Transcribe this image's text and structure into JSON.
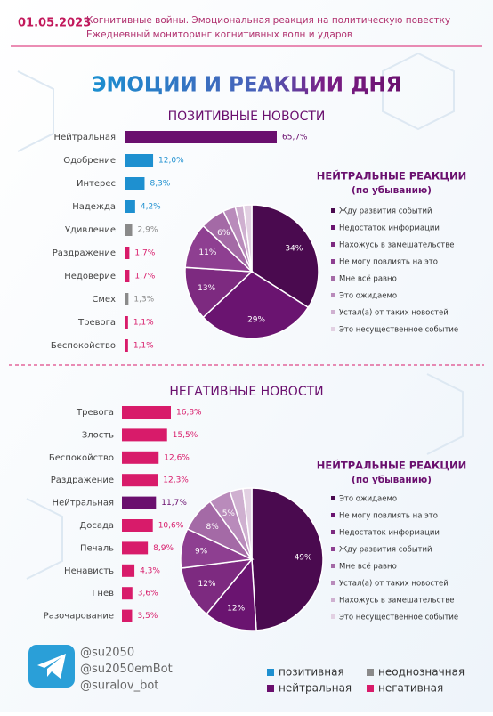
{
  "header": {
    "date": "01.05.2023",
    "line1": "Когнитивные войны. Эмоциональная реакция на политическую повестку",
    "line2": "Ежедневный мониторинг когнитивных волн и ударов"
  },
  "title": "ЭМОЦИИ И РЕАКЦИИ ДНЯ",
  "chart_data": [
    {
      "type": "bar",
      "orientation": "horizontal",
      "title": "ПОЗИТИВНЫЕ НОВОСТИ",
      "categories": [
        "Нейтральная",
        "Одобрение",
        "Интерес",
        "Надежда",
        "Удивление",
        "Раздражение",
        "Недоверие",
        "Смех",
        "Тревога",
        "Беспокойство"
      ],
      "values": [
        65.7,
        12.0,
        8.3,
        4.2,
        2.9,
        1.7,
        1.7,
        1.3,
        1.1,
        1.1
      ],
      "value_labels": [
        "65,7%",
        "12,0%",
        "8,3%",
        "4,2%",
        "2,9%",
        "1,7%",
        "1,7%",
        "1,3%",
        "1,1%",
        "1,1%"
      ],
      "colors": [
        "#6a0f6e",
        "#1e90d0",
        "#1e90d0",
        "#1e90d0",
        "#8a8a8a",
        "#d81b6a",
        "#d81b6a",
        "#8a8a8a",
        "#d81b6a",
        "#d81b6a"
      ]
    },
    {
      "type": "pie",
      "title": "НЕЙТРАЛЬНЫЕ РЕАКЦИИ",
      "subtitle": "(по убыванию)",
      "categories": [
        "Жду развития событий",
        "Недостаток информации",
        "Нахожусь в замешательстве",
        "Не могу повлиять на это",
        "Мне всё равно",
        "Это ожидаемо",
        "Устал(а) от таких новостей",
        "Это несущественное событие"
      ],
      "values": [
        34,
        29,
        13,
        11,
        6,
        3,
        2,
        2
      ],
      "value_labels": [
        "34%",
        "29%",
        "13%",
        "11%",
        "6%",
        null,
        null,
        null
      ],
      "colors": [
        "#4a0a4f",
        "#6a1470",
        "#7d2a80",
        "#8e3f91",
        "#a46aa6",
        "#b98bbb",
        "#cfb0d0",
        "#e2d0e2"
      ]
    },
    {
      "type": "bar",
      "orientation": "horizontal",
      "title": "НЕГАТИВНЫЕ НОВОСТИ",
      "categories": [
        "Тревога",
        "Злость",
        "Беспокойство",
        "Раздражение",
        "Нейтральная",
        "Досада",
        "Печаль",
        "Ненависть",
        "Гнев",
        "Разочарование"
      ],
      "values": [
        16.8,
        15.5,
        12.6,
        12.3,
        11.7,
        10.6,
        8.9,
        4.3,
        3.6,
        3.5
      ],
      "value_labels": [
        "16,8%",
        "15,5%",
        "12,6%",
        "12,3%",
        "11,7%",
        "10,6%",
        "8,9%",
        "4,3%",
        "3,6%",
        "3,5%"
      ],
      "colors": [
        "#d81b6a",
        "#d81b6a",
        "#d81b6a",
        "#d81b6a",
        "#6a0f6e",
        "#d81b6a",
        "#d81b6a",
        "#d81b6a",
        "#d81b6a",
        "#d81b6a"
      ]
    },
    {
      "type": "pie",
      "title": "НЕЙТРАЛЬНЫЕ РЕАКЦИИ",
      "subtitle": "(по убыванию)",
      "categories": [
        "Это ожидаемо",
        "Не могу повлиять на это",
        "Недостаток информации",
        "Жду развития событий",
        "Мне всё равно",
        "Устал(а) от таких новостей",
        "Нахожусь в замешательстве",
        "Это несущественное событие"
      ],
      "values": [
        49,
        12,
        12,
        9,
        8,
        5,
        3,
        2
      ],
      "value_labels": [
        "49%",
        "12%",
        "12%",
        "9%",
        "8%",
        "5%",
        null,
        null
      ],
      "colors": [
        "#4a0a4f",
        "#6a1470",
        "#7d2a80",
        "#8e3f91",
        "#a46aa6",
        "#b98bbb",
        "#cfb0d0",
        "#e2d0e2"
      ]
    }
  ],
  "contacts": [
    "@su2050",
    "@su2050emBot",
    "@suralov_bot"
  ],
  "color_legend": [
    {
      "label": "позитивная",
      "color": "#1e90d0"
    },
    {
      "label": "неоднозначная",
      "color": "#8a8a8a"
    },
    {
      "label": "нейтральная",
      "color": "#6a0f6e"
    },
    {
      "label": "негативная",
      "color": "#d81b6a"
    }
  ]
}
